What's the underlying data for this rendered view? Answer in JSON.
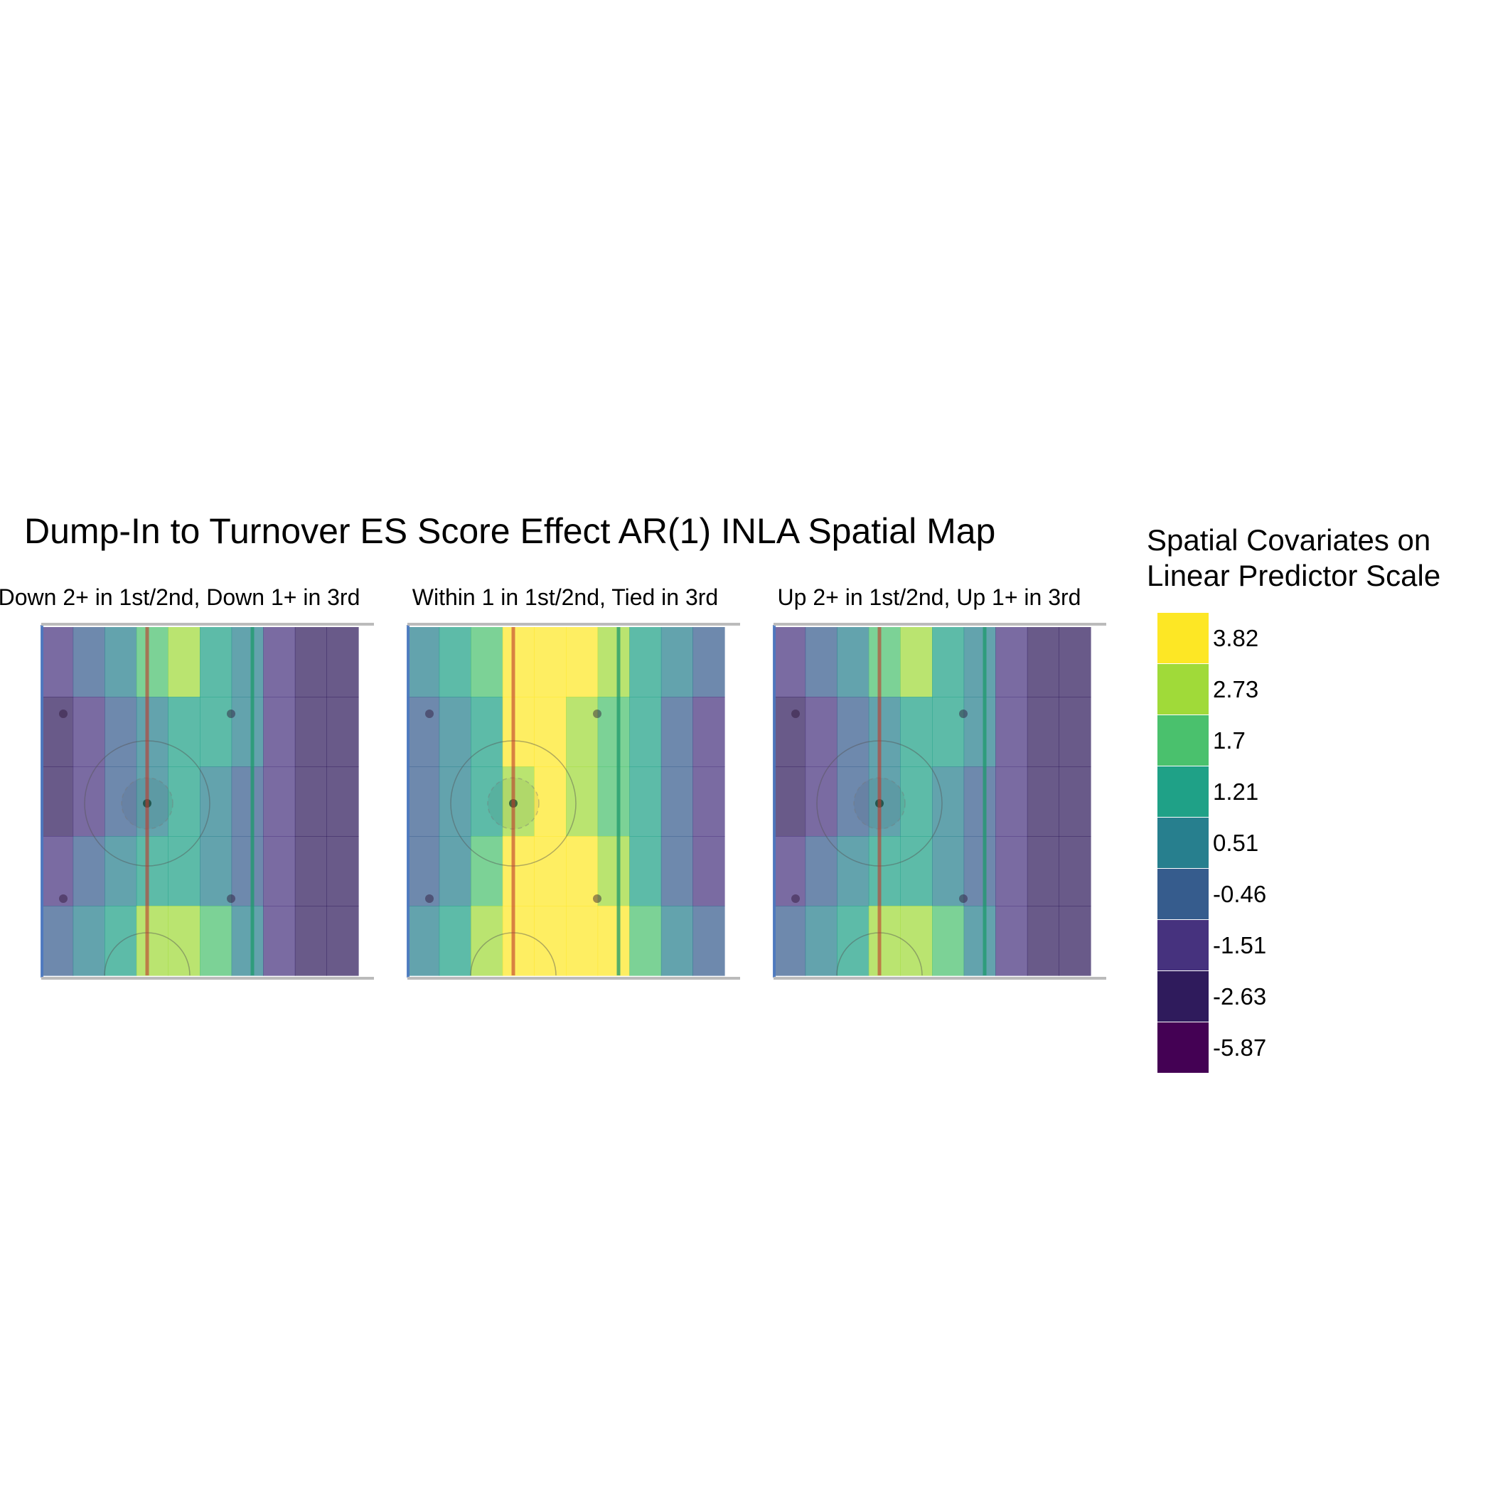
{
  "chart_data": {
    "type": "heatmap",
    "title": "Dump-In to Turnover ES Score Effect AR(1) INLA Spatial Map",
    "legend": {
      "title_lines": [
        "Spatial Covariates on",
        "Linear Predictor Scale"
      ],
      "placement": "right",
      "breaks": [
        "3.82",
        "2.73",
        "1.7",
        "1.21",
        "0.51",
        "-0.46",
        "-1.51",
        "-2.63",
        "-5.87"
      ],
      "colors": [
        "#fde725",
        "#a0da39",
        "#4ac16d",
        "#1fa187",
        "#277f8e",
        "#365c8d",
        "#46327e",
        "#2f1b5c",
        "#440154"
      ]
    },
    "panels": [
      {
        "label": "Down 2+ in 1st/2nd, Down 1+ in 3rd",
        "columns": [
          {
            "lane": "wall",
            "values": [
              -1.51,
              -2.63,
              -2.63,
              -1.51,
              -0.46
            ]
          },
          {
            "lane": "behind-net",
            "values": [
              -0.46,
              -1.51,
              -1.51,
              -0.46,
              0.51
            ]
          },
          {
            "lane": "near-circle",
            "values": [
              0.51,
              -0.46,
              -0.46,
              0.51,
              1.21
            ]
          },
          {
            "lane": "blue-line",
            "values": [
              1.7,
              0.51,
              0.51,
              1.21,
              2.73
            ]
          },
          {
            "lane": "outer-circle",
            "values": [
              2.73,
              1.21,
              1.21,
              1.21,
              2.73
            ]
          },
          {
            "lane": "slot-high",
            "values": [
              1.21,
              1.21,
              0.51,
              0.51,
              1.7
            ]
          },
          {
            "lane": "centre-line",
            "values": [
              0.51,
              0.51,
              -0.46,
              -0.46,
              0.51
            ]
          },
          {
            "lane": "neutral-zone",
            "values": [
              -1.51,
              -1.51,
              -1.51,
              -1.51,
              -1.51
            ]
          },
          {
            "lane": "far-neutral",
            "values": [
              -2.63,
              -2.63,
              -2.63,
              -2.63,
              -2.63
            ]
          },
          {
            "lane": "far-end",
            "values": [
              -2.63,
              -2.63,
              -2.63,
              -2.63,
              -2.63
            ]
          }
        ]
      },
      {
        "label": "Within 1 in 1st/2nd, Tied in 3rd",
        "columns": [
          {
            "lane": "wall",
            "values": [
              0.51,
              -0.46,
              -0.46,
              -0.46,
              0.51
            ]
          },
          {
            "lane": "behind-net",
            "values": [
              1.21,
              0.51,
              0.51,
              0.51,
              1.21
            ]
          },
          {
            "lane": "near-circle",
            "values": [
              1.7,
              1.21,
              1.21,
              1.7,
              2.73
            ]
          },
          {
            "lane": "blue-line",
            "values": [
              3.82,
              3.82,
              2.73,
              3.82,
              3.82
            ]
          },
          {
            "lane": "outer-circle",
            "values": [
              3.82,
              3.82,
              3.82,
              3.82,
              3.82
            ]
          },
          {
            "lane": "slot-high",
            "values": [
              3.82,
              2.73,
              2.73,
              3.82,
              3.82
            ]
          },
          {
            "lane": "centre-line",
            "values": [
              2.73,
              1.7,
              1.7,
              2.73,
              3.82
            ]
          },
          {
            "lane": "neutral-zone",
            "values": [
              1.21,
              1.21,
              1.21,
              1.21,
              1.7
            ]
          },
          {
            "lane": "far-neutral",
            "values": [
              0.51,
              -0.46,
              -0.46,
              -0.46,
              0.51
            ]
          },
          {
            "lane": "far-end",
            "values": [
              -0.46,
              -1.51,
              -1.51,
              -1.51,
              -0.46
            ]
          }
        ]
      },
      {
        "label": "Up 2+ in 1st/2nd, Up 1+ in 3rd",
        "columns": [
          {
            "lane": "wall",
            "values": [
              -1.51,
              -2.63,
              -2.63,
              -1.51,
              -0.46
            ]
          },
          {
            "lane": "behind-net",
            "values": [
              -0.46,
              -1.51,
              -1.51,
              -0.46,
              0.51
            ]
          },
          {
            "lane": "near-circle",
            "values": [
              0.51,
              -0.46,
              -0.46,
              0.51,
              1.21
            ]
          },
          {
            "lane": "blue-line",
            "values": [
              1.7,
              0.51,
              0.51,
              1.21,
              2.73
            ]
          },
          {
            "lane": "outer-circle",
            "values": [
              2.73,
              1.21,
              1.21,
              1.21,
              2.73
            ]
          },
          {
            "lane": "slot-high",
            "values": [
              1.21,
              1.21,
              0.51,
              0.51,
              1.7
            ]
          },
          {
            "lane": "centre-line",
            "values": [
              0.51,
              0.51,
              -0.46,
              -0.46,
              0.51
            ]
          },
          {
            "lane": "neutral-zone",
            "values": [
              -1.51,
              -1.51,
              -1.51,
              -1.51,
              -1.51
            ]
          },
          {
            "lane": "far-neutral",
            "values": [
              -2.63,
              -2.63,
              -2.63,
              -2.63,
              -2.63
            ]
          },
          {
            "lane": "far-end",
            "values": [
              -2.63,
              -2.63,
              -2.63,
              -2.63,
              -2.63
            ]
          }
        ]
      }
    ]
  }
}
